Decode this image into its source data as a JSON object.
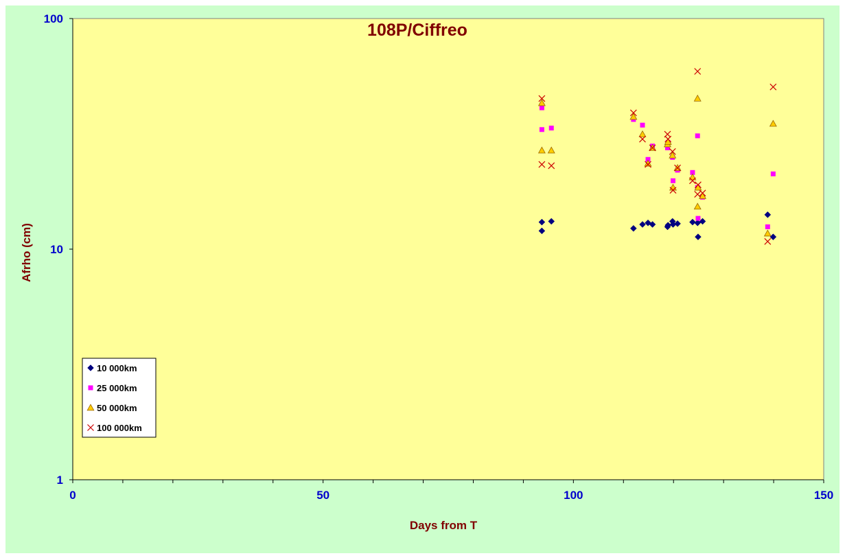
{
  "chart_data": {
    "type": "scatter",
    "title": "108P/Ciffreo",
    "xlabel": "Days from T",
    "ylabel": "Afrho (cm)",
    "xlim": [
      0,
      150
    ],
    "ylim": [
      1,
      100
    ],
    "yscale": "log",
    "x_ticks": [
      "0",
      "50",
      "100",
      "150"
    ],
    "y_ticks": [
      "1",
      "10",
      "100"
    ],
    "grid": false,
    "legend_position": "bottom-left",
    "colors": {
      "frame_background": "#ccffcc",
      "plot_background": "#ffff99",
      "title": "#800000",
      "tick_labels": "#0000cc"
    },
    "series": [
      {
        "name": "10 000km",
        "marker": "diamond",
        "color": "#000080",
        "points": [
          [
            93.7,
            13.1
          ],
          [
            93.7,
            12.0
          ],
          [
            95.6,
            13.2
          ],
          [
            112.0,
            12.3
          ],
          [
            113.8,
            12.8
          ],
          [
            114.9,
            13.0
          ],
          [
            115.8,
            12.8
          ],
          [
            118.8,
            12.5
          ],
          [
            118.9,
            12.7
          ],
          [
            119.8,
            13.2
          ],
          [
            119.9,
            12.8
          ],
          [
            120.8,
            12.9
          ],
          [
            123.8,
            13.1
          ],
          [
            124.8,
            13.0
          ],
          [
            124.9,
            11.3
          ],
          [
            125.8,
            13.2
          ],
          [
            138.8,
            14.1
          ],
          [
            139.9,
            11.3
          ]
        ]
      },
      {
        "name": "25 000km",
        "marker": "square",
        "color": "#ff00ff",
        "points": [
          [
            93.7,
            41.0
          ],
          [
            93.7,
            33.0
          ],
          [
            95.6,
            33.5
          ],
          [
            112.0,
            36.5
          ],
          [
            113.8,
            34.5
          ],
          [
            114.9,
            24.5
          ],
          [
            115.8,
            28.0
          ],
          [
            118.8,
            27.5
          ],
          [
            118.9,
            29.0
          ],
          [
            119.8,
            25.0
          ],
          [
            119.9,
            19.8
          ],
          [
            120.8,
            22.0
          ],
          [
            123.8,
            21.5
          ],
          [
            124.8,
            31.0
          ],
          [
            124.8,
            18.5
          ],
          [
            124.9,
            13.6
          ],
          [
            125.8,
            16.8
          ],
          [
            138.8,
            12.5
          ],
          [
            139.9,
            21.2
          ]
        ]
      },
      {
        "name": "50 000km",
        "marker": "triangle",
        "color": "#ffcc00",
        "points": [
          [
            93.7,
            43.0
          ],
          [
            93.7,
            26.8
          ],
          [
            95.6,
            26.8
          ],
          [
            112.0,
            37.5
          ],
          [
            113.8,
            31.5
          ],
          [
            114.9,
            23.5
          ],
          [
            115.8,
            27.5
          ],
          [
            118.8,
            28.5
          ],
          [
            118.9,
            29.2
          ],
          [
            119.8,
            25.5
          ],
          [
            119.9,
            18.5
          ],
          [
            120.8,
            22.5
          ],
          [
            123.8,
            20.5
          ],
          [
            124.8,
            45.0
          ],
          [
            124.8,
            15.3
          ],
          [
            124.9,
            18.5
          ],
          [
            125.8,
            17.0
          ],
          [
            138.8,
            11.7
          ],
          [
            139.9,
            35.0
          ]
        ]
      },
      {
        "name": "100 000km",
        "marker": "x",
        "color": "#cc0000",
        "points": [
          [
            93.7,
            45.0
          ],
          [
            93.7,
            23.3
          ],
          [
            95.6,
            23.0
          ],
          [
            112.0,
            39.0
          ],
          [
            113.8,
            30.0
          ],
          [
            114.9,
            23.3
          ],
          [
            115.8,
            27.5
          ],
          [
            118.8,
            31.5
          ],
          [
            118.9,
            30.0
          ],
          [
            119.8,
            26.5
          ],
          [
            119.9,
            18.0
          ],
          [
            120.8,
            22.5
          ],
          [
            123.8,
            19.8
          ],
          [
            124.8,
            59.0
          ],
          [
            124.8,
            17.3
          ],
          [
            124.9,
            19.0
          ],
          [
            125.8,
            17.5
          ],
          [
            138.8,
            10.8
          ],
          [
            139.9,
            50.5
          ]
        ]
      }
    ]
  }
}
